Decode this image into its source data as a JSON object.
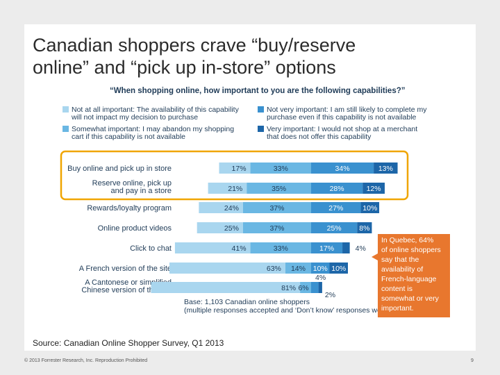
{
  "slide": {
    "title_line1": "Canadian shoppers crave “buy/reserve",
    "title_line2": "online” and “pick up in-store” options",
    "source": "Source: Canadian Online Shopper Survey, Q1 2013",
    "copyright": "© 2013 Forrester Research, Inc. Reproduction Prohibited",
    "page_number": "9"
  },
  "chart_data": {
    "type": "bar",
    "stacked": true,
    "orientation": "horizontal",
    "title": "“When shopping online, how important to you are the following capabilities?”",
    "categories": [
      [
        "Buy online and pick up in store"
      ],
      [
        "Reserve online, pick up",
        "and pay in a store"
      ],
      [
        "Rewards/loyalty program"
      ],
      [
        "Online product videos"
      ],
      [
        "Click to chat"
      ],
      [
        "A French version of the site"
      ],
      [
        "A Cantonese or simplified",
        "Chinese version of the site"
      ]
    ],
    "series": [
      {
        "name": [
          "Not at all important: The availability of this capability",
          "will not impact my decision to purchase"
        ],
        "color": "#a9d6ef",
        "values": [
          17,
          21,
          24,
          25,
          41,
          63,
          81
        ]
      },
      {
        "name": [
          "Somewhat important: I may abandon my shopping",
          "cart if this capability is not available"
        ],
        "color": "#6ab7e3",
        "values": [
          33,
          35,
          37,
          37,
          33,
          14,
          6
        ]
      },
      {
        "name": [
          "Not very important: I am still likely to complete my",
          "purchase even if this capability is not available"
        ],
        "color": "#3a91cf",
        "values": [
          34,
          28,
          27,
          25,
          17,
          10,
          4
        ]
      },
      {
        "name": [
          "Very important: I would not shop at a merchant",
          "that does not offer this capability"
        ],
        "color": "#1d66a8",
        "values": [
          13,
          12,
          10,
          8,
          4,
          10,
          2
        ]
      }
    ],
    "value_labels": [
      [
        "17%",
        "33%",
        "34%",
        "13%"
      ],
      [
        "21%",
        "35%",
        "28%",
        "12%"
      ],
      [
        "24%",
        "37%",
        "27%",
        "10%"
      ],
      [
        "25%",
        "37%",
        "25%",
        "8%"
      ],
      [
        "41%",
        "33%",
        "17%",
        "4%"
      ],
      [
        "63%",
        "14%",
        "10%",
        "10%"
      ],
      [
        "81%",
        "6%",
        "4%",
        "2%"
      ]
    ],
    "highlighted_rows": [
      0,
      1
    ],
    "highlight_color": "#f0a500",
    "base_note": [
      "Base: 1,103 Canadian online shoppers",
      "(multiple responses accepted and ‘Don’t know’ responses were removed)"
    ],
    "callout": {
      "lines": [
        "In Quebec, 64%",
        "of online shoppers",
        "say that the",
        "availability of",
        "French-language",
        "content is",
        "somewhat or very",
        "important."
      ],
      "color": "#e8772e"
    }
  }
}
